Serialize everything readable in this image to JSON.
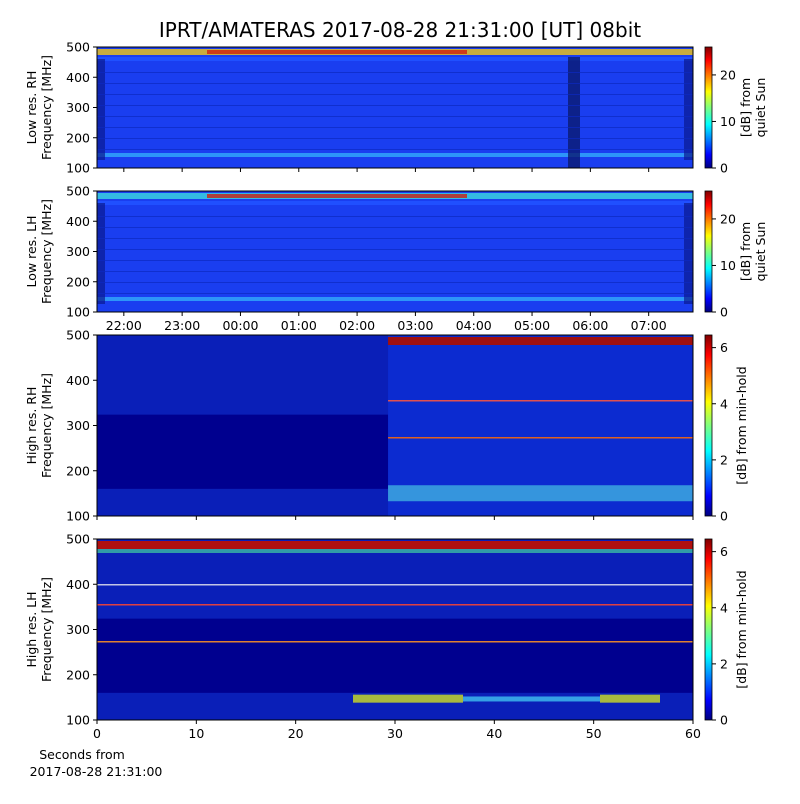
{
  "title": "IPRT/AMATERAS 2017-08-28 21:31:00 [UT]   08bit",
  "chart_data": [
    {
      "type": "heatmap",
      "ylabel": [
        "Low res. RH",
        "Frequency [MHz]"
      ],
      "ylim": [
        100,
        500
      ],
      "yticks": [
        100,
        200,
        300,
        400,
        500
      ],
      "xlim": [
        21.54,
        31.76
      ],
      "xticks": [
        22,
        23,
        24,
        25,
        26,
        27,
        28,
        29,
        30,
        31
      ],
      "colorbar_label": [
        "[dB] from",
        "quiet Sun"
      ],
      "clim": [
        0,
        26
      ],
      "cticks": [
        0,
        10,
        20
      ],
      "colormap": "jet"
    },
    {
      "type": "heatmap",
      "ylabel": [
        "Low res. LH",
        "Frequency [MHz]"
      ],
      "ylim": [
        100,
        500
      ],
      "yticks": [
        100,
        200,
        300,
        400,
        500
      ],
      "xlim": [
        21.54,
        31.76
      ],
      "xticks": [
        {
          "value": 22,
          "label": "22:00"
        },
        {
          "value": 23,
          "label": "23:00"
        },
        {
          "value": 24,
          "label": "00:00"
        },
        {
          "value": 25,
          "label": "01:00"
        },
        {
          "value": 26,
          "label": "02:00"
        },
        {
          "value": 27,
          "label": "03:00"
        },
        {
          "value": 28,
          "label": "04:00"
        },
        {
          "value": 29,
          "label": "05:00"
        },
        {
          "value": 30,
          "label": "06:00"
        },
        {
          "value": 31,
          "label": "07:00"
        }
      ],
      "colorbar_label": [
        "[dB] from",
        "quiet Sun"
      ],
      "clim": [
        0,
        26
      ],
      "cticks": [
        0,
        10,
        20
      ],
      "colormap": "jet"
    },
    {
      "type": "heatmap",
      "ylabel": [
        "High res. RH",
        "Frequency [MHz]"
      ],
      "ylim": [
        100,
        500
      ],
      "yticks": [
        100,
        200,
        300,
        400,
        500
      ],
      "xlim": [
        0,
        60
      ],
      "xticks": [
        0,
        10,
        20,
        30,
        40,
        50,
        60
      ],
      "colorbar_label": [
        "[dB] from min-hold"
      ],
      "clim": [
        0,
        6.45
      ],
      "cticks": [
        0,
        2,
        4,
        6
      ],
      "colormap": "jet"
    },
    {
      "type": "heatmap",
      "ylabel": [
        "High res. LH",
        "Frequency [MHz]"
      ],
      "ylim": [
        100,
        500
      ],
      "yticks": [
        100,
        200,
        300,
        400,
        500
      ],
      "xlim": [
        0,
        60
      ],
      "xticks": [
        0,
        10,
        20,
        30,
        40,
        50,
        60
      ],
      "xlabel": [
        "Seconds from",
        "2017-08-28 21:31:00"
      ],
      "colorbar_label": [
        "[dB] from min-hold"
      ],
      "clim": [
        0,
        6.45
      ],
      "cticks": [
        0,
        2,
        4,
        6
      ],
      "colormap": "jet"
    }
  ]
}
